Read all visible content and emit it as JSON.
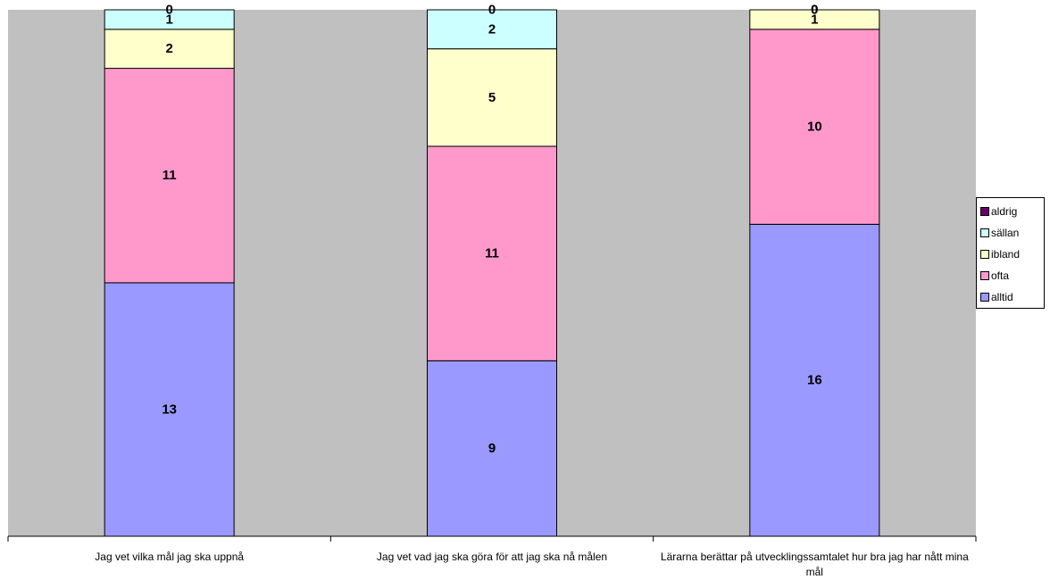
{
  "chart_data": {
    "type": "bar",
    "stacked": true,
    "categories": [
      "Jag vet vilka mål jag ska uppnå",
      "Jag vet vad jag ska göra för att jag ska nå målen",
      "Lärarna berättar på utvecklingssamtalet hur bra jag har nått mina mål"
    ],
    "series": [
      {
        "name": "alltid",
        "color": "#9999ff",
        "values": [
          13,
          9,
          16
        ]
      },
      {
        "name": "ofta",
        "color": "#ff99cc",
        "values": [
          11,
          11,
          10
        ]
      },
      {
        "name": "ibland",
        "color": "#ffffcc",
        "values": [
          2,
          5,
          1
        ]
      },
      {
        "name": "sällan",
        "color": "#ccffff",
        "values": [
          1,
          2,
          0
        ]
      },
      {
        "name": "aldrig",
        "color": "#660066",
        "values": [
          0,
          0,
          0
        ]
      }
    ],
    "legend_order": [
      "aldrig",
      "sällan",
      "ibland",
      "ofta",
      "alltid"
    ],
    "plot_background": "#c0c0c0",
    "legend_position": "right",
    "title": "",
    "xlabel": "",
    "ylabel": ""
  }
}
